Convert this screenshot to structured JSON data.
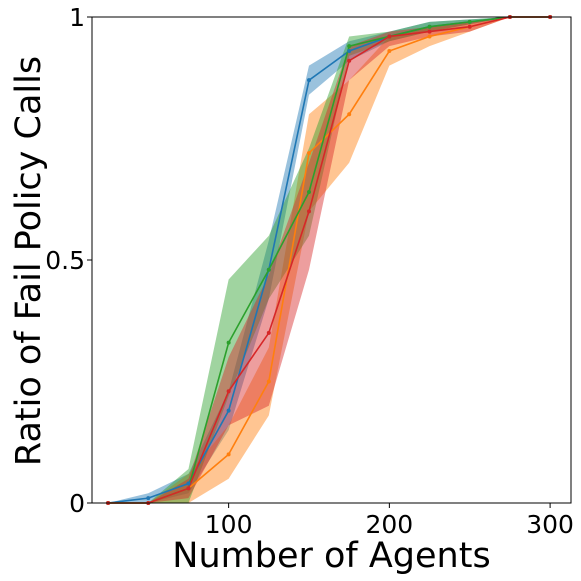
{
  "chart_data": {
    "type": "line",
    "title": "",
    "xlabel": "Number of Agents",
    "ylabel": "Ratio of Fail Policy Calls",
    "xlim": [
      15,
      313
    ],
    "ylim": [
      0,
      1
    ],
    "xticks": [
      100,
      200,
      300
    ],
    "xtick_labels": [
      "100",
      "200",
      "300"
    ],
    "yticks": [
      0,
      0.5,
      1
    ],
    "ytick_labels": [
      "0",
      "0.5",
      "1"
    ],
    "grid": false,
    "legend": false,
    "series": [
      {
        "color": "#1f77b4",
        "x": [
          25,
          50,
          75,
          100,
          125,
          150,
          175,
          200,
          225,
          250,
          275,
          300
        ],
        "y": [
          0.0,
          0.01,
          0.04,
          0.19,
          0.48,
          0.87,
          0.93,
          0.96,
          0.98,
          0.99,
          1.0,
          1.0
        ],
        "lower": [
          0.0,
          0.0,
          0.02,
          0.15,
          0.42,
          0.84,
          0.91,
          0.95,
          0.97,
          0.985,
          1.0,
          1.0
        ],
        "upper": [
          0.0,
          0.02,
          0.06,
          0.23,
          0.54,
          0.9,
          0.95,
          0.97,
          0.99,
          0.995,
          1.0,
          1.0
        ]
      },
      {
        "color": "#ff7f0e",
        "x": [
          25,
          50,
          75,
          100,
          125,
          150,
          175,
          200,
          225,
          250,
          275,
          300
        ],
        "y": [
          0.0,
          0.0,
          0.03,
          0.1,
          0.25,
          0.72,
          0.8,
          0.93,
          0.96,
          0.98,
          1.0,
          1.0
        ],
        "lower": [
          0.0,
          0.0,
          0.0,
          0.05,
          0.18,
          0.6,
          0.7,
          0.9,
          0.94,
          0.97,
          1.0,
          1.0
        ],
        "upper": [
          0.0,
          0.0,
          0.06,
          0.16,
          0.32,
          0.8,
          0.87,
          0.96,
          0.98,
          0.99,
          1.0,
          1.0
        ]
      },
      {
        "color": "#2ca02c",
        "x": [
          25,
          50,
          75,
          100,
          125,
          150,
          175,
          200,
          225,
          250,
          275,
          300
        ],
        "y": [
          0.0,
          0.0,
          0.03,
          0.33,
          0.48,
          0.64,
          0.94,
          0.96,
          0.98,
          0.99,
          1.0,
          1.0
        ],
        "lower": [
          0.0,
          0.0,
          0.0,
          0.22,
          0.42,
          0.55,
          0.92,
          0.95,
          0.97,
          0.985,
          1.0,
          1.0
        ],
        "upper": [
          0.0,
          0.0,
          0.07,
          0.46,
          0.55,
          0.73,
          0.96,
          0.97,
          0.99,
          0.995,
          1.0,
          1.0
        ]
      },
      {
        "color": "#d62728",
        "x": [
          25,
          50,
          75,
          100,
          125,
          150,
          175,
          200,
          225,
          250,
          275,
          300
        ],
        "y": [
          0.0,
          0.0,
          0.03,
          0.23,
          0.35,
          0.6,
          0.91,
          0.96,
          0.97,
          0.98,
          1.0,
          1.0
        ],
        "lower": [
          0.0,
          0.0,
          0.01,
          0.16,
          0.2,
          0.48,
          0.87,
          0.94,
          0.96,
          0.97,
          1.0,
          1.0
        ],
        "upper": [
          0.0,
          0.0,
          0.05,
          0.3,
          0.47,
          0.7,
          0.94,
          0.97,
          0.98,
          0.99,
          1.0,
          1.0
        ]
      }
    ]
  }
}
